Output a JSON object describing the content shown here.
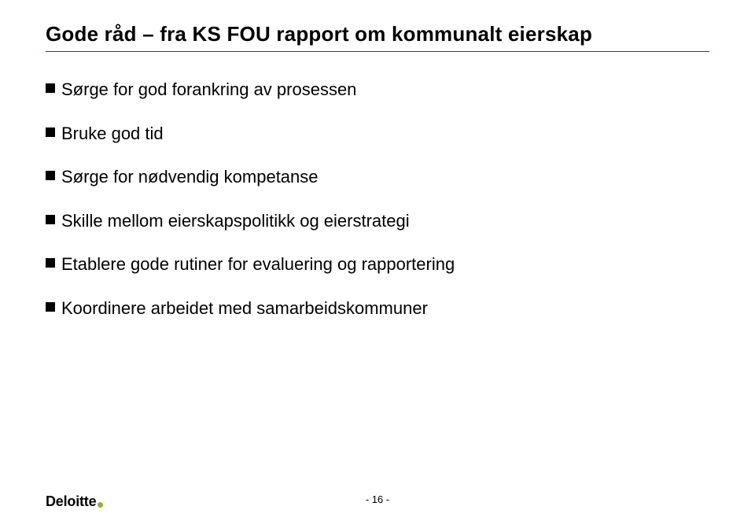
{
  "title": "Gode råd – fra KS FOU rapport om kommunalt eierskap",
  "hr_color": "#1a3f8a",
  "bullets": {
    "mark_color": "#000000",
    "items": [
      "Sørge for god forankring av prosessen",
      "Bruke god tid",
      "Sørge for nødvendig kompetanse",
      "Skille mellom eierskapspolitikk og eierstrategi",
      "Etablere gode rutiner for evaluering og rapportering",
      "Koordinere arbeidet med samarbeidskommuner"
    ]
  },
  "footer": {
    "page_label": "- 16 -",
    "logo_text": "Deloitte",
    "logo_dot_color": "#7fb842"
  }
}
